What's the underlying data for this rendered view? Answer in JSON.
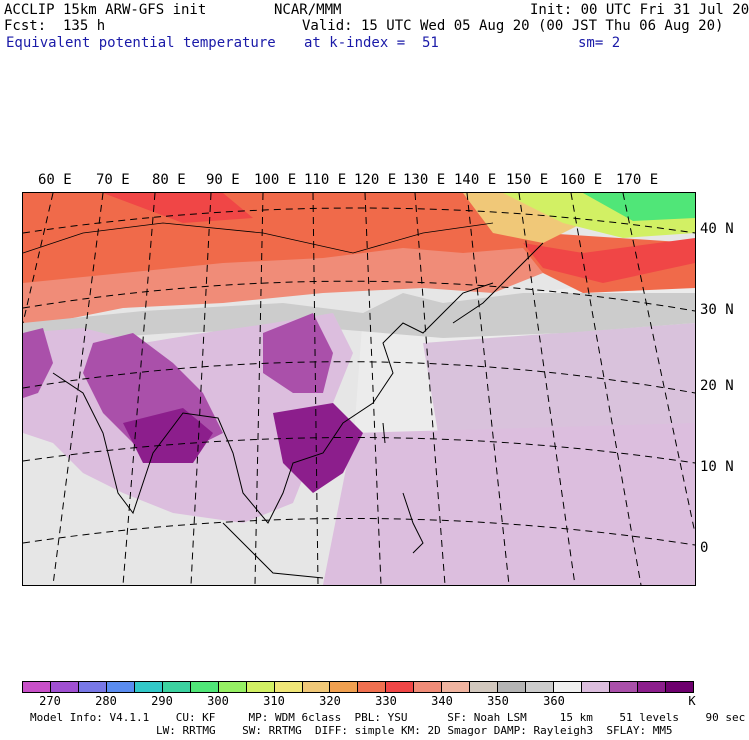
{
  "header": {
    "left": [
      "ACCLIP 15km ARW-GFS init",
      "Fcst:  135 h",
      "Equivalent potential temperature"
    ],
    "center": [
      "NCAR/MMM"
    ],
    "right_init": "Init: 00 UTC Fri 31 Jul 20",
    "valid": "Valid: 15 UTC Wed 05 Aug 20 (00 JST Thu 06 Aug 20)",
    "level": "at k-index =  51",
    "smooth": "sm= 2"
  },
  "map": {
    "lon_labels": [
      "60 E",
      "70 E",
      "80 E",
      "90 E",
      "100 E",
      "110 E",
      "120 E",
      "130 E",
      "140 E",
      "150 E",
      "160 E",
      "170 E"
    ],
    "lat_labels": [
      "40 N",
      "30 N",
      "20 N",
      "10 N",
      "0"
    ]
  },
  "colorbar": {
    "colors": [
      "#c850c8",
      "#a050d2",
      "#7878e6",
      "#5a8cf0",
      "#32c8c8",
      "#3cd2a0",
      "#50e678",
      "#96f064",
      "#d2f064",
      "#f0e678",
      "#f0c878",
      "#f0a050",
      "#f07050",
      "#f04646",
      "#f08c78",
      "#f0b4a0",
      "#d2c8be",
      "#b4b4b4",
      "#cccccc",
      "#f0f0f0",
      "#dcbede",
      "#aa50aa",
      "#8c1e8c",
      "#6e006e"
    ],
    "ticks": [
      "270",
      "280",
      "290",
      "300",
      "310",
      "320",
      "330",
      "340",
      "350",
      "360",
      "K"
    ]
  },
  "footer": {
    "line1": "Model Info: V4.1.1    CU: KF     MP: WDM 6class  PBL: YSU      SF: Noah LSM     15 km    51 levels    90 sec",
    "line2": "LW: RRTMG    SW: RRTMG  DIFF: simple KM: 2D Smagor DAMP: Rayleigh3  SFLAY: MM5"
  }
}
